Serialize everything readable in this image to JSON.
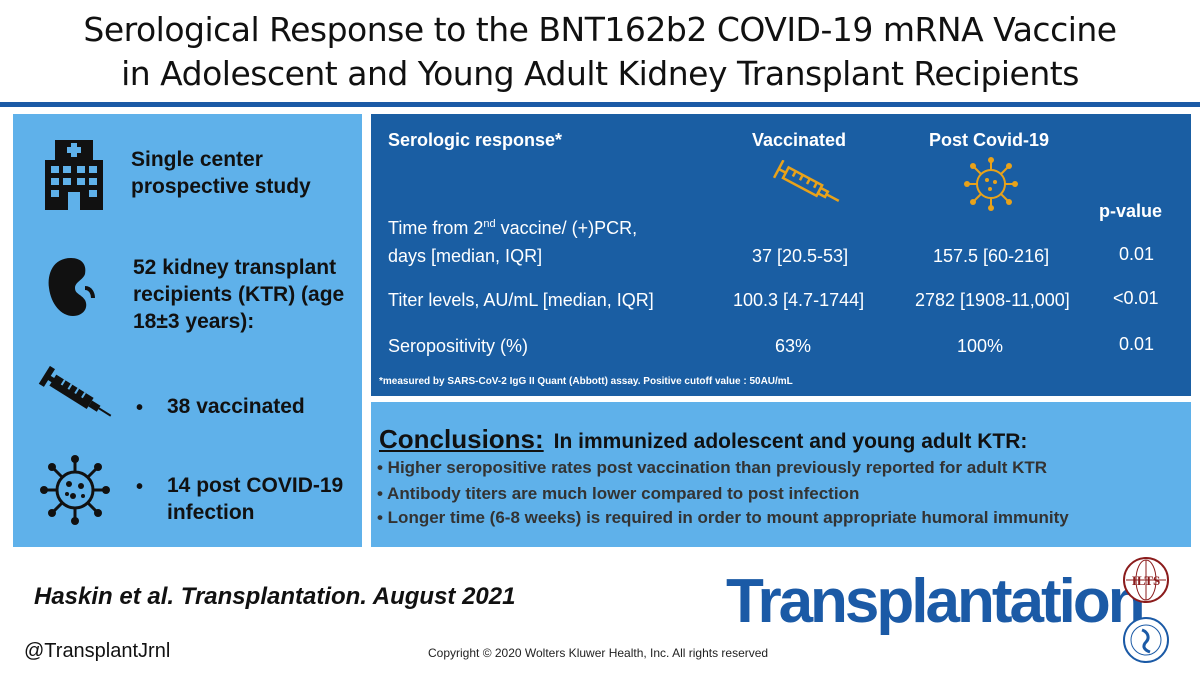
{
  "title": {
    "line1": "Serological Response to the BNT162b2 COVID-19 mRNA Vaccine",
    "line2": "in Adolescent and Young Adult Kidney Transplant Recipients"
  },
  "left_panel": {
    "study": "Single center prospective study",
    "participants": "52 kidney transplant recipients (KTR) (age 18±3 years):",
    "bullet_char": "•",
    "vaccinated": "38 vaccinated",
    "post_covid": "14 post COVID-19 infection",
    "icons": [
      "hospital-icon",
      "kidney-icon",
      "syringe-icon",
      "virus-icon"
    ]
  },
  "table": {
    "headers": {
      "response": "Serologic response*",
      "vaccinated": "Vaccinated",
      "post_covid": "Post Covid-19",
      "pvalue": "p-value"
    },
    "rows": [
      {
        "label_line1": "Time from 2nd vaccine/ (+)PCR,",
        "label_line2": "days  [median, IQR]",
        "vaccinated": "37 [20.5-53]",
        "post_covid": "157.5 [60-216]",
        "pvalue": "0.01"
      },
      {
        "label_line1": "Titer levels, AU/mL [median, IQR]",
        "vaccinated": "100.3 [4.7-1744]",
        "post_covid": "2782 [1908-11,000]",
        "pvalue": "<0.01"
      },
      {
        "label_line1": "Seropositivity  (%)",
        "vaccinated": "63%",
        "post_covid": "100%",
        "pvalue": "0.01"
      }
    ],
    "footnote": "*measured by SARS-CoV-2 IgG II Quant (Abbott) assay.  Positive cutoff value : 50AU/mL"
  },
  "conclusions": {
    "heading": "Conclusions:",
    "subheading": "In immunized adolescent and young adult KTR:",
    "bullets": [
      "•  Higher seropositive rates post vaccination than previously reported for adult KTR",
      "•  Antibody titers are much lower compared to post infection",
      "•  Longer time (6-8 weeks) is required in order to mount appropriate humoral immunity"
    ]
  },
  "footer": {
    "citation": "Haskin et al. Transplantation. August 2021",
    "handle": "@TransplantJrnl",
    "copyright": "Copyright © 2020  Wolters Kluwer Health, Inc. All rights reserved",
    "brand": "Transplantation",
    "brand_mark": "®",
    "logo1_text": "ILTS"
  },
  "colors": {
    "accent": "#1b5aa6",
    "panel": "#5fb1ea",
    "table_bg": "#1a5ea3",
    "syringe": "#e8a21a",
    "virus": "#e8a21a"
  }
}
